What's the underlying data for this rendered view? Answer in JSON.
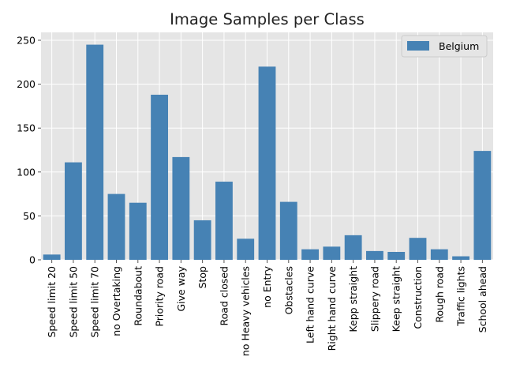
{
  "chart_data": {
    "type": "bar",
    "title": "Image Samples per Class",
    "xlabel": "",
    "ylabel": "",
    "categories": [
      "Speed limit 20",
      "Speed limit 50",
      "Speed limit 70",
      "no Overtaking",
      "Roundabout",
      "Priority road",
      "Give way",
      "Stop",
      "Road closed",
      "no Heavy vehicles",
      "no Entry",
      "Obstacles",
      "Left hand curve",
      "Right hand curve",
      "Kepp straight",
      "Slippery road",
      "Keep straight",
      "Construction",
      "Rough road",
      "Traffic lights",
      "School ahead"
    ],
    "series": [
      {
        "name": "Belgium",
        "values": [
          6,
          111,
          245,
          75,
          65,
          188,
          117,
          45,
          89,
          24,
          220,
          66,
          12,
          15,
          28,
          10,
          9,
          25,
          12,
          4,
          124
        ],
        "color": "#4682b4"
      }
    ],
    "ylim": [
      0,
      259
    ],
    "yticks": [
      0,
      50,
      100,
      150,
      200,
      250
    ],
    "grid": true,
    "legend_position": "top-right",
    "style": {
      "background": "#e5e5e5",
      "grid_color": "#ffffff",
      "label_color": "#555555",
      "title_color": "#222222"
    }
  }
}
